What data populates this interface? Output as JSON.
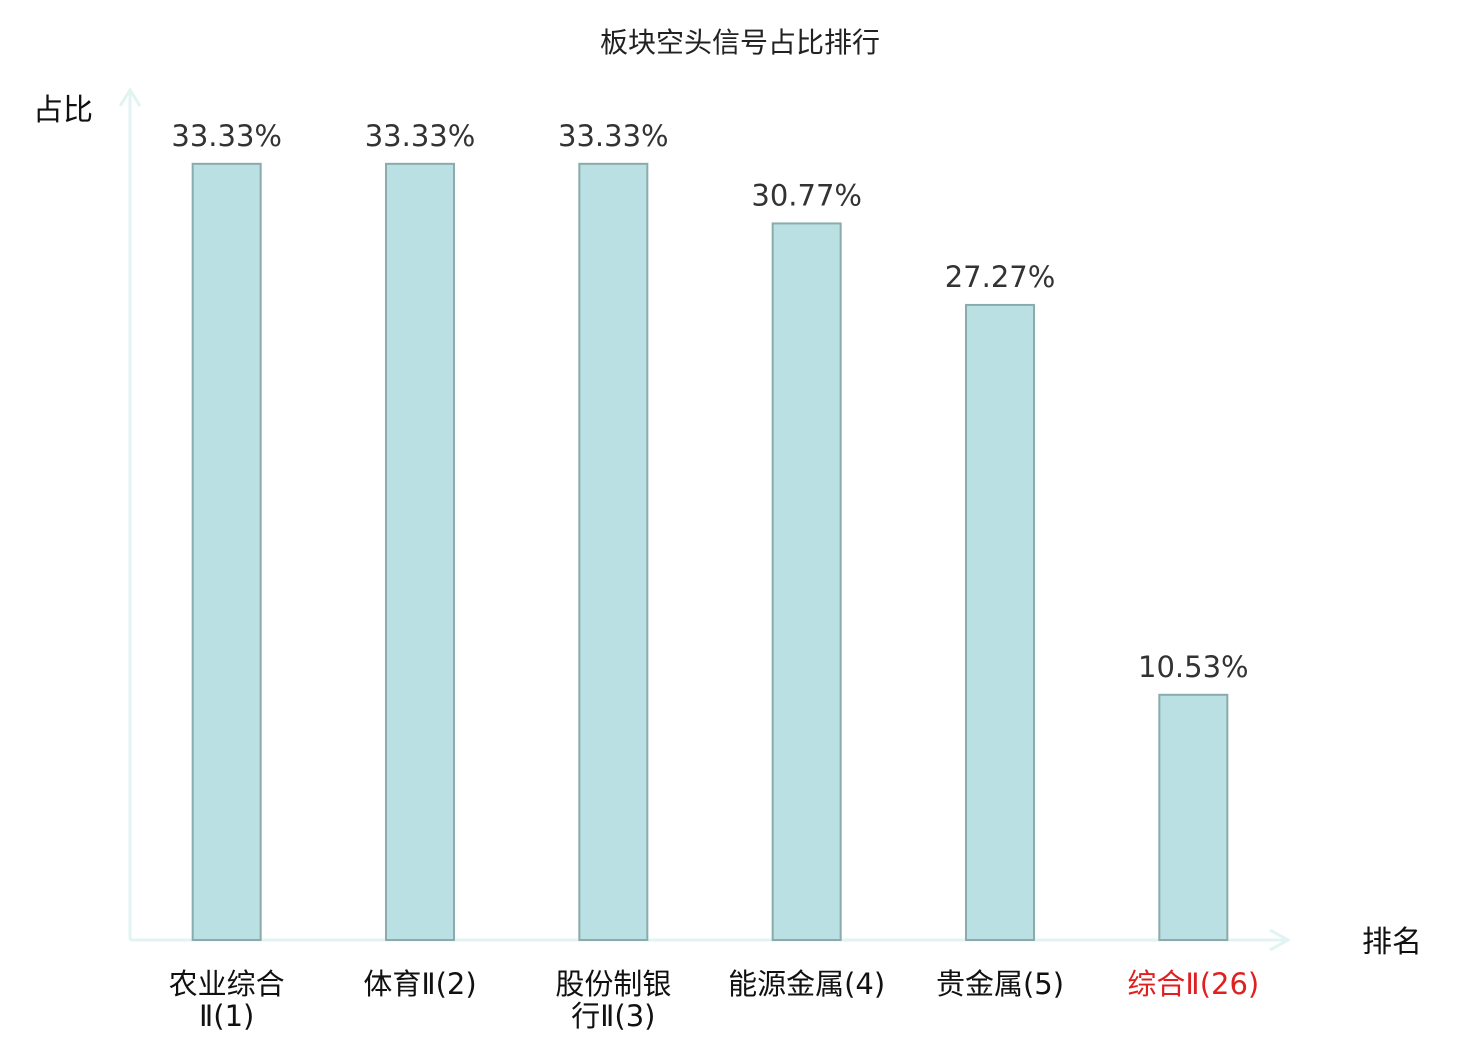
{
  "chart_data": {
    "type": "bar",
    "title": "板块空头信号占比排行",
    "ylabel": "占比",
    "xlabel": "排名",
    "ylim": [
      0,
      36.5
    ],
    "grid": false,
    "categories": [
      [
        "农业综合",
        "Ⅱ(1)"
      ],
      [
        "体育Ⅱ(2)"
      ],
      [
        "股份制银",
        "行Ⅱ(3)"
      ],
      [
        "能源金属(4)"
      ],
      [
        "贵金属(5)"
      ],
      [
        "综合Ⅱ(26)"
      ]
    ],
    "values": [
      33.33,
      33.33,
      33.33,
      30.77,
      27.27,
      10.53
    ],
    "value_labels": [
      "33.33%",
      "33.33%",
      "33.33%",
      "30.77%",
      "27.27%",
      "10.53%"
    ],
    "highlight_index": 5
  },
  "colors": {
    "bar_fill": "#bbe0e3",
    "bar_stroke": "#8aabab",
    "axis": "#e2f4f1",
    "highlight_text": "#e02020"
  }
}
